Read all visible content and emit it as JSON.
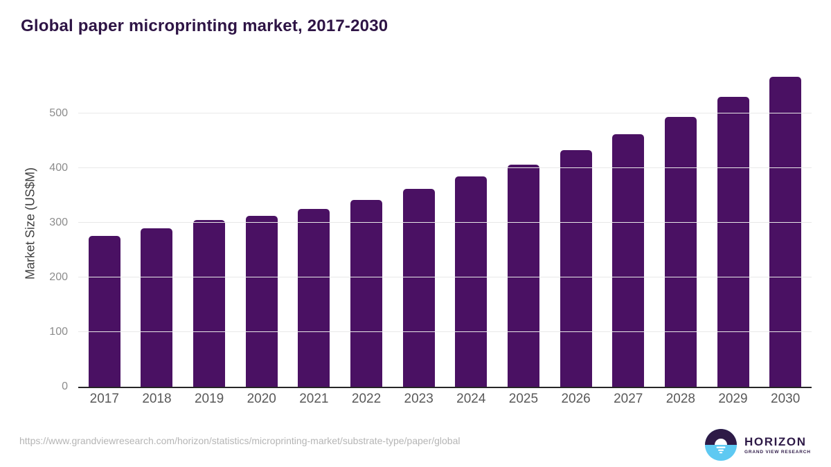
{
  "title": "Global paper microprinting market, 2017-2030",
  "chart_data": {
    "type": "bar",
    "title": "Global paper microprinting market, 2017-2030",
    "categories": [
      "2017",
      "2018",
      "2019",
      "2020",
      "2021",
      "2022",
      "2023",
      "2024",
      "2025",
      "2026",
      "2027",
      "2028",
      "2029",
      "2030"
    ],
    "values": [
      276,
      290,
      305,
      313,
      325,
      342,
      362,
      384,
      406,
      433,
      462,
      494,
      530,
      567
    ],
    "xlabel": "",
    "ylabel": "Market Size (US$M)",
    "ylim": [
      0,
      587
    ],
    "yticks": [
      0,
      100,
      200,
      300,
      400,
      500
    ],
    "grid": true,
    "legend": false
  },
  "footer": {
    "source_url": "https://www.grandviewresearch.com/horizon/statistics/microprinting-market/substrate-type/paper/global",
    "logo": {
      "brand": "HORIZON",
      "tagline": "GRAND VIEW RESEARCH"
    }
  },
  "colors": {
    "title": "#2e1445",
    "bar": "#4a1163",
    "gridline": "#e8e8e8",
    "axis_line": "#262626",
    "x_tick_label": "#595959",
    "y_tick_label": "#8c8c8c",
    "y_axis_title": "#404040",
    "source_url_text": "#b5b5b5",
    "logo_purple": "#2e1a47",
    "logo_blue": "#5ec9f2"
  }
}
